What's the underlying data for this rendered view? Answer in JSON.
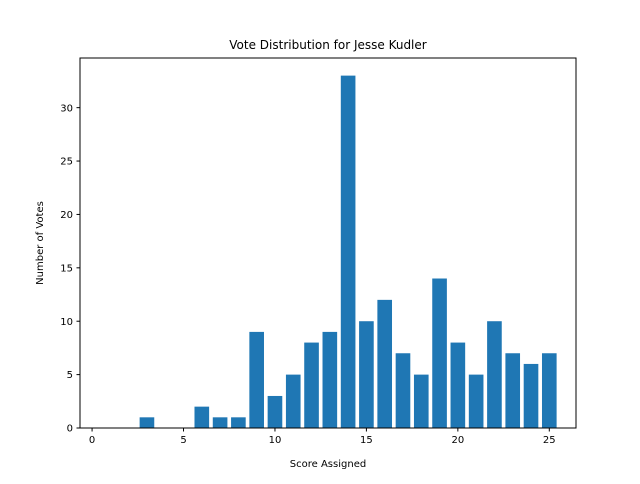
{
  "chart_data": {
    "type": "bar",
    "title": "Vote Distribution for Jesse Kudler",
    "xlabel": "Score Assigned",
    "ylabel": "Number of Votes",
    "x": [
      3,
      6,
      7,
      8,
      9,
      10,
      11,
      12,
      13,
      14,
      15,
      16,
      17,
      18,
      19,
      20,
      21,
      22,
      23,
      24,
      25
    ],
    "values": [
      1,
      2,
      1,
      1,
      9,
      3,
      5,
      8,
      9,
      33,
      10,
      12,
      7,
      5,
      14,
      8,
      5,
      10,
      7,
      6,
      7
    ],
    "xlim": [
      -0.66,
      26.46
    ],
    "ylim": [
      0,
      34.65
    ],
    "xticks": [
      0,
      5,
      10,
      15,
      20,
      25
    ],
    "xtick_labels": [
      "0",
      "5",
      "10",
      "15",
      "20",
      "25"
    ],
    "yticks": [
      0,
      5,
      10,
      15,
      20,
      25,
      30
    ],
    "ytick_labels": [
      "0",
      "5",
      "10",
      "15",
      "20",
      "25",
      "30"
    ],
    "bar_width": 0.8,
    "bar_color": "#1f77b4",
    "grid": false,
    "legend": "none"
  }
}
